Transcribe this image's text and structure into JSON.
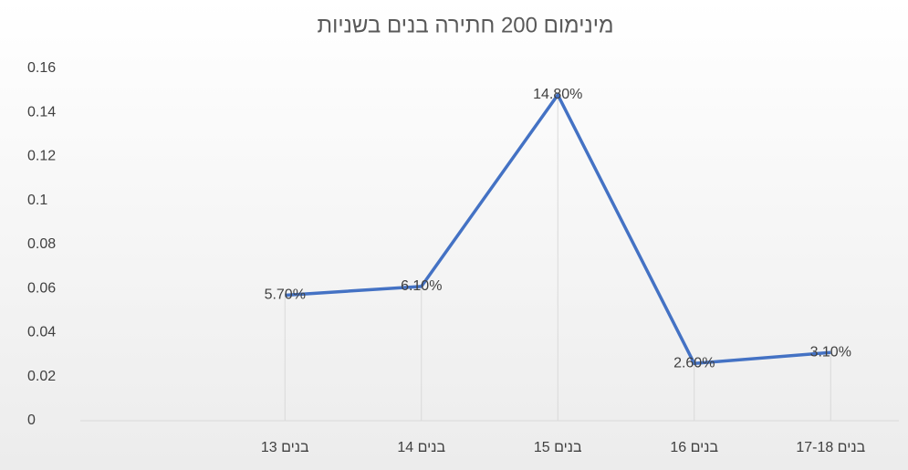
{
  "chart_data": {
    "type": "line",
    "title": "מינימום 200 חתירה בנים בשניות",
    "categories": [
      null,
      "בנים 13",
      "בנים 14",
      "בנים 15",
      "בנים 16",
      "בנים 17-18"
    ],
    "series": [
      {
        "color": "#4472c4",
        "values": [
          null,
          0.057,
          0.061,
          0.148,
          0.026,
          0.031
        ],
        "value_labels": [
          null,
          "5.70%",
          "6.10%",
          "14.80%",
          "2.60%",
          "3.10%"
        ]
      }
    ],
    "ylim": [
      0,
      0.16
    ],
    "yticks": [
      0,
      0.02,
      0.04,
      0.06,
      0.08,
      0.1,
      0.12,
      0.14,
      0.16
    ],
    "drop_lines": true
  }
}
